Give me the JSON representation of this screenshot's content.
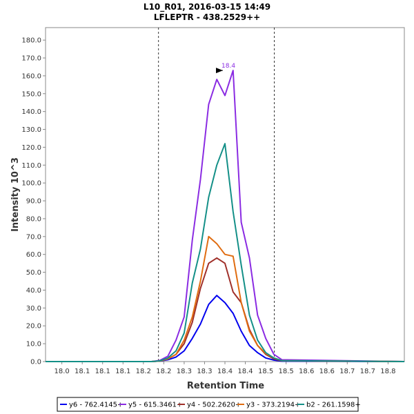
{
  "chart_data": {
    "type": "line",
    "title": "L10_R01, 2016-03-15 14:49",
    "subtitle": "LFLEPTR - 438.2529++",
    "xlabel": "Retention Time",
    "ylabel": "Intensity 10^3",
    "xlim": [
      17.96,
      18.84
    ],
    "ylim": [
      0,
      187
    ],
    "xticks": [
      "18.0",
      "18.1",
      "18.1",
      "18.1",
      "18.2",
      "18.2",
      "18.3",
      "18.3",
      "18.4",
      "18.4",
      "18.5",
      "18.5",
      "18.6",
      "18.6",
      "18.7",
      "18.7",
      "18.8"
    ],
    "xtick_values": [
      18.0,
      18.05,
      18.1,
      18.15,
      18.2,
      18.25,
      18.3,
      18.35,
      18.4,
      18.45,
      18.5,
      18.55,
      18.6,
      18.65,
      18.7,
      18.75,
      18.8
    ],
    "yticks": [
      "0.0",
      "10.0",
      "20.0",
      "30.0",
      "40.0",
      "50.0",
      "60.0",
      "70.0",
      "80.0",
      "90.0",
      "100.0",
      "110.0",
      "120.0",
      "130.0",
      "140.0",
      "150.0",
      "160.0",
      "170.0",
      "180.0"
    ],
    "ytick_values": [
      0,
      10,
      20,
      30,
      40,
      50,
      60,
      70,
      80,
      90,
      100,
      110,
      120,
      130,
      140,
      150,
      160,
      170,
      180
    ],
    "grid": false,
    "legend_position": "bottom",
    "vlines": [
      18.237,
      18.521
    ],
    "peak_annotation": {
      "label": "18.4",
      "x": 18.4,
      "y": 163,
      "color": "#8a2be2"
    },
    "x": [
      17.96,
      18.1,
      18.2,
      18.22,
      18.24,
      18.26,
      18.28,
      18.3,
      18.32,
      18.34,
      18.36,
      18.38,
      18.4,
      18.42,
      18.44,
      18.46,
      18.48,
      18.5,
      18.52,
      18.54,
      18.84
    ],
    "series": [
      {
        "name": "y6 - 762.4145+",
        "color": "#0000ee",
        "values": [
          0,
          0,
          0,
          0,
          0.3,
          1,
          2.5,
          6,
          13,
          21,
          32,
          37,
          33,
          27,
          17,
          9,
          5,
          2,
          0.8,
          0.2,
          0
        ]
      },
      {
        "name": "y5 - 615.3461+",
        "color": "#8a2be2",
        "values": [
          0,
          0,
          0,
          0,
          0.6,
          3,
          12,
          25,
          68,
          102,
          144,
          158,
          149,
          163,
          78,
          58,
          26,
          13,
          4,
          1,
          0
        ]
      },
      {
        "name": "y4 - 502.2620+",
        "color": "#a0302a",
        "values": [
          0,
          0,
          0,
          0,
          0.3,
          1.5,
          4,
          10,
          22,
          41,
          55,
          58,
          55,
          39,
          33,
          18,
          9,
          4,
          1.5,
          0.4,
          0
        ]
      },
      {
        "name": "y3 - 373.2194+",
        "color": "#e06c10",
        "values": [
          0,
          0,
          0,
          0,
          0.3,
          1.5,
          4,
          12,
          25,
          45,
          70,
          66,
          60,
          59,
          33,
          17,
          9,
          4.5,
          2,
          0.5,
          0
        ]
      },
      {
        "name": "b2 - 261.1598+",
        "color": "#138f87",
        "values": [
          0,
          0,
          0,
          0,
          0.4,
          2,
          6,
          16,
          44,
          63,
          92,
          110,
          122,
          84,
          54,
          26,
          12,
          5,
          2,
          0.5,
          0
        ]
      }
    ]
  }
}
